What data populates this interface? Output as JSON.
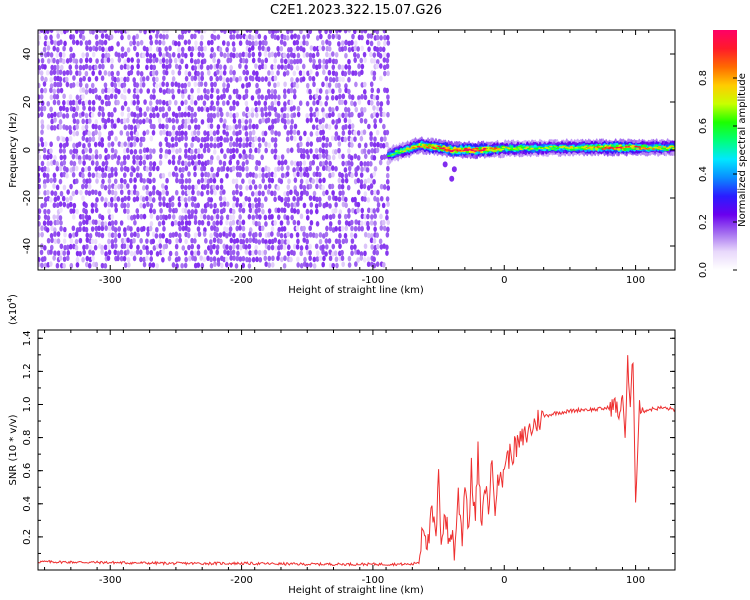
{
  "chart_data": [
    {
      "type": "heatmap",
      "title": "C2E1.2023.322.15.07.G26",
      "xlabel": "Height of straight line (km)",
      "ylabel": "Frequency (Hz)",
      "xlim": [
        -355,
        130
      ],
      "ylim": [
        -50,
        50
      ],
      "xticks": [
        -300,
        -200,
        -100,
        0,
        100
      ],
      "yticks": [
        -40,
        -20,
        0,
        20,
        40
      ],
      "colorbar": {
        "label": "Normalized spectral amplitude",
        "range": [
          0,
          1
        ],
        "ticks": [
          "0.0",
          "0.2",
          "0.4",
          "0.6",
          "0.8"
        ],
        "colors": [
          "#ffffff",
          "#e8d8fb",
          "#a46ef0",
          "#6a00ee",
          "#2a1cff",
          "#0a8cff",
          "#00e8ff",
          "#00ff7a",
          "#1cff00",
          "#c8ff00",
          "#ffcc00",
          "#ff6a00",
          "#ff1a2a",
          "#ff0066"
        ]
      },
      "regions": [
        {
          "name": "noise",
          "x_range": [
            -355,
            -88
          ],
          "y_range": [
            -50,
            50
          ],
          "amplitude_range": [
            0.05,
            0.2
          ]
        },
        {
          "name": "signal",
          "x_range": [
            -88,
            130
          ],
          "center_frequency_hz": 1,
          "peak_amplitude": 1.0
        }
      ],
      "signal_trace": [
        {
          "x": -88,
          "y": -2,
          "amp": 0.55
        },
        {
          "x": -75,
          "y": 0,
          "amp": 0.7
        },
        {
          "x": -65,
          "y": 2,
          "amp": 0.8
        },
        {
          "x": -50,
          "y": 1,
          "amp": 0.85
        },
        {
          "x": -40,
          "y": 0,
          "amp": 0.95
        },
        {
          "x": -20,
          "y": 0,
          "amp": 0.95
        },
        {
          "x": 0,
          "y": 0.5,
          "amp": 0.7
        },
        {
          "x": 40,
          "y": 1,
          "amp": 0.65
        },
        {
          "x": 70,
          "y": 1,
          "amp": 0.8
        },
        {
          "x": 90,
          "y": 1,
          "amp": 0.9
        },
        {
          "x": 110,
          "y": 1,
          "amp": 0.75
        },
        {
          "x": 130,
          "y": 1,
          "amp": 0.7
        }
      ]
    },
    {
      "type": "line",
      "xlabel": "Height of straight line (km)",
      "ylabel": "SNR (10 * v/v)",
      "y_multiplier": "(x10",
      "y_multiplier_exp": "4",
      "y_multiplier_close": ")",
      "xlim": [
        -355,
        130
      ],
      "ylim": [
        0,
        1.45
      ],
      "xticks": [
        -300,
        -200,
        -100,
        0,
        100
      ],
      "yticks": [
        "0.2",
        "0.4",
        "0.6",
        "0.8",
        "1.0",
        "1.2",
        "1.4"
      ],
      "line_color": "#ee3030",
      "series": [
        {
          "x": [
            -355,
            -300,
            -250,
            -200,
            -150,
            -100,
            -70,
            -65,
            -62,
            -58,
            -55,
            -52,
            -50,
            -48,
            -45,
            -42,
            -40,
            -38,
            -35,
            -32,
            -30,
            -27,
            -25,
            -22,
            -20,
            -17,
            -15,
            -12,
            -10,
            -7,
            -5,
            -2,
            0,
            5,
            10,
            15,
            20,
            25,
            30,
            40,
            50,
            60,
            70,
            80,
            85,
            88,
            90,
            92,
            94,
            96,
            98,
            100,
            103,
            106,
            110,
            120,
            130
          ],
          "y": [
            0.05,
            0.045,
            0.04,
            0.04,
            0.035,
            0.035,
            0.035,
            0.05,
            0.3,
            0.15,
            0.35,
            0.18,
            0.55,
            0.2,
            0.35,
            0.15,
            0.25,
            0.1,
            0.45,
            0.2,
            0.55,
            0.25,
            0.6,
            0.3,
            0.7,
            0.2,
            0.55,
            0.35,
            0.65,
            0.4,
            0.6,
            0.5,
            0.65,
            0.7,
            0.75,
            0.8,
            0.85,
            0.9,
            0.93,
            0.95,
            0.96,
            0.97,
            0.97,
            0.98,
            1.0,
            0.9,
            1.1,
            0.8,
            1.25,
            0.95,
            1.3,
            0.45,
            1.0,
            0.96,
            0.97,
            0.98,
            0.97
          ]
        }
      ]
    }
  ]
}
